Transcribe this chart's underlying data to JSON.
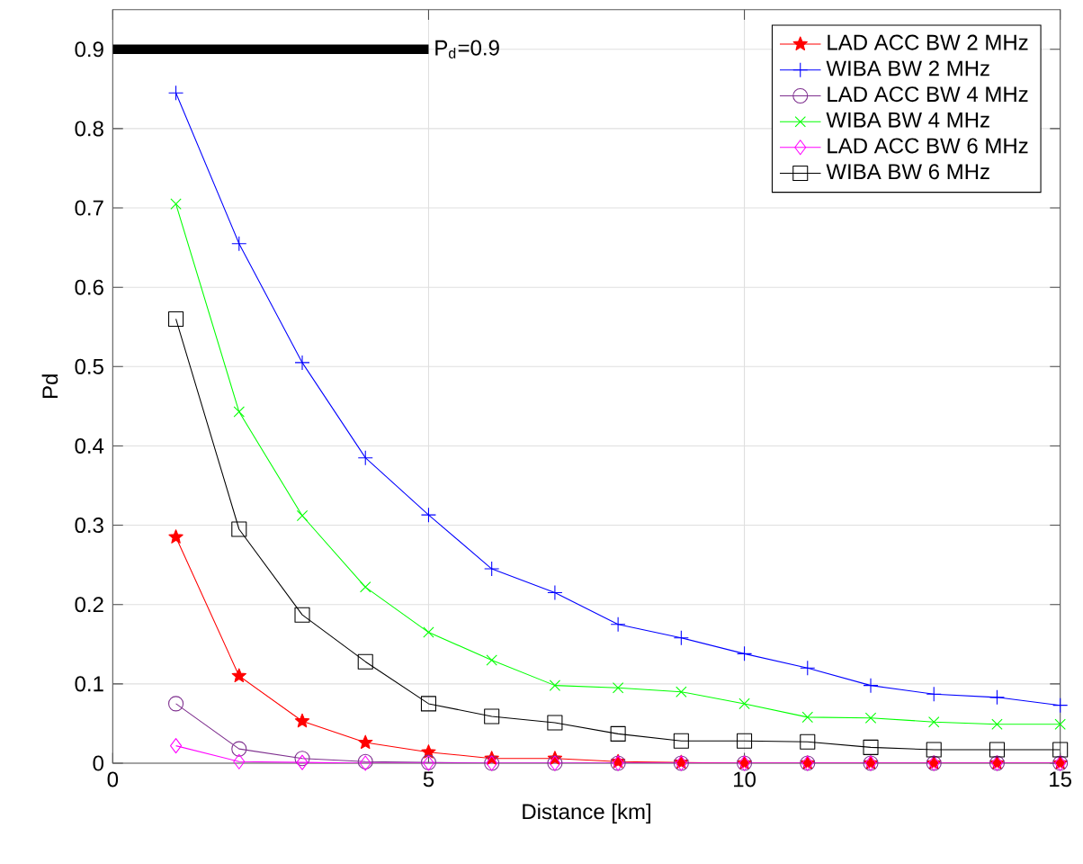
{
  "chart_data": {
    "type": "line",
    "xlabel": "Distance [km]",
    "ylabel": "Pd",
    "x": [
      1,
      2,
      3,
      4,
      5,
      6,
      7,
      8,
      9,
      10,
      11,
      12,
      13,
      14,
      15
    ],
    "series": [
      {
        "name": "LAD ACC BW 2 MHz",
        "color": "#ff0000",
        "marker": "star",
        "values": [
          0.285,
          0.11,
          0.053,
          0.026,
          0.014,
          0.006,
          0.006,
          0.002,
          0.001,
          0,
          0,
          0,
          0,
          0,
          0
        ]
      },
      {
        "name": "WIBA BW 2 MHz",
        "color": "#0000ff",
        "marker": "plus",
        "values": [
          0.845,
          0.655,
          0.505,
          0.385,
          0.313,
          0.245,
          0.215,
          0.175,
          0.158,
          0.138,
          0.12,
          0.098,
          0.087,
          0.083,
          0.073
        ]
      },
      {
        "name": "LAD ACC BW 4 MHz",
        "color": "#7e2f8e",
        "marker": "circle",
        "values": [
          0.075,
          0.018,
          0.006,
          0.002,
          0.001,
          0,
          0,
          0,
          0,
          0,
          0,
          0,
          0,
          0,
          0
        ]
      },
      {
        "name": "WIBA BW 4 MHz",
        "color": "#00ff00",
        "marker": "cross",
        "values": [
          0.705,
          0.443,
          0.312,
          0.222,
          0.165,
          0.13,
          0.098,
          0.095,
          0.09,
          0.075,
          0.058,
          0.057,
          0.052,
          0.049,
          0.049
        ]
      },
      {
        "name": "LAD ACC BW 6 MHz",
        "color": "#ff00ff",
        "marker": "diamond",
        "values": [
          0.022,
          0.002,
          0.001,
          0,
          0,
          0,
          0,
          0,
          0,
          0,
          0,
          0,
          0,
          0,
          0
        ]
      },
      {
        "name": "WIBA BW 6 MHz",
        "color": "#000000",
        "marker": "square",
        "values": [
          0.56,
          0.295,
          0.187,
          0.128,
          0.075,
          0.059,
          0.051,
          0.037,
          0.028,
          0.028,
          0.027,
          0.02,
          0.017,
          0.017,
          0.017
        ]
      },
      {
        "color": "#000000",
        "marker": "none",
        "x": [
          0,
          5
        ],
        "values": [
          0.9,
          0.9
        ]
      }
    ],
    "annotations": [
      {
        "text": "P$_{d}$=0.9",
        "x": 5,
        "y": 0.9
      }
    ],
    "xlim": [
      0,
      15
    ],
    "ylim": [
      0,
      0.95
    ],
    "xticks": [
      0,
      5,
      10,
      15
    ],
    "yticks": [
      0,
      0.1,
      0.2,
      0.3,
      0.4,
      0.5,
      0.6,
      0.7,
      0.8,
      0.9
    ],
    "grid": true,
    "legend": "top right"
  }
}
